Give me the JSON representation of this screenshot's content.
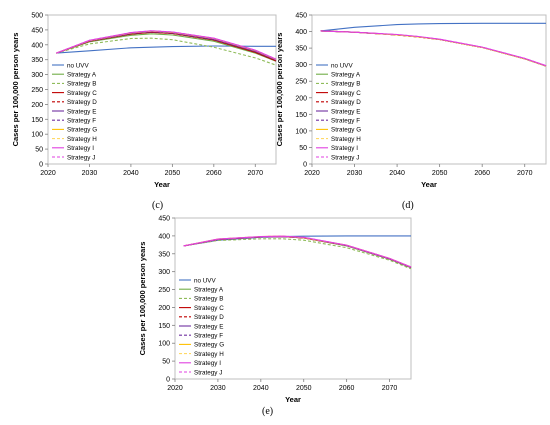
{
  "chart_data": [
    {
      "type": "line",
      "panel_label": "(c)",
      "xlabel": "Year",
      "ylabel": "Cases per 100,000 person years",
      "xlim": [
        2020,
        2075
      ],
      "ylim": [
        0,
        500
      ],
      "xticks": [
        "2020",
        "2030",
        "2040",
        "2050",
        "2060",
        "2070"
      ],
      "yticks": [
        "0",
        "50",
        "100",
        "150",
        "200",
        "250",
        "300",
        "350",
        "400",
        "450",
        "500"
      ],
      "x": [
        2022,
        2030,
        2040,
        2045,
        2050,
        2060,
        2070,
        2075
      ],
      "series": [
        {
          "name": "no UVV",
          "color": "#4472C4",
          "dash": false,
          "values": [
            372,
            380,
            390,
            392,
            394,
            396,
            395,
            395
          ]
        },
        {
          "name": "Strategy A",
          "color": "#70AD47",
          "dash": false,
          "values": [
            372,
            410,
            432,
            437,
            433,
            412,
            372,
            345
          ]
        },
        {
          "name": "Strategy B",
          "color": "#8FBC5A",
          "dash": true,
          "values": [
            372,
            403,
            421,
            422,
            417,
            392,
            356,
            332
          ]
        },
        {
          "name": "Strategy C",
          "color": "#C00000",
          "dash": false,
          "values": [
            372,
            412,
            436,
            442,
            438,
            416,
            375,
            346
          ]
        },
        {
          "name": "Strategy D",
          "color": "#C00000",
          "dash": true,
          "values": [
            372,
            412,
            436,
            442,
            438,
            416,
            375,
            346
          ]
        },
        {
          "name": "Strategy E",
          "color": "#7030A0",
          "dash": false,
          "values": [
            372,
            413,
            438,
            444,
            440,
            418,
            378,
            349
          ]
        },
        {
          "name": "Strategy F",
          "color": "#7030A0",
          "dash": true,
          "values": [
            372,
            413,
            438,
            444,
            440,
            418,
            378,
            349
          ]
        },
        {
          "name": "Strategy G",
          "color": "#FFC000",
          "dash": false,
          "values": [
            372,
            414,
            440,
            446,
            442,
            421,
            381,
            351
          ]
        },
        {
          "name": "Strategy H",
          "color": "#FFD966",
          "dash": true,
          "values": [
            372,
            414,
            440,
            446,
            442,
            421,
            381,
            351
          ]
        },
        {
          "name": "Strategy I",
          "color": "#E040E0",
          "dash": false,
          "values": [
            372,
            415,
            441,
            447,
            443,
            422,
            382,
            352
          ]
        },
        {
          "name": "Strategy J",
          "color": "#E040E0",
          "dash": true,
          "values": [
            372,
            415,
            441,
            447,
            443,
            422,
            382,
            352
          ]
        }
      ]
    },
    {
      "type": "line",
      "panel_label": "(d)",
      "xlabel": "Year",
      "ylabel": "Cases per 100,000 person years",
      "xlim": [
        2020,
        2075
      ],
      "ylim": [
        0,
        450
      ],
      "xticks": [
        "2020",
        "2030",
        "2040",
        "2050",
        "2060",
        "2070"
      ],
      "yticks": [
        "0",
        "50",
        "100",
        "150",
        "200",
        "250",
        "300",
        "350",
        "400",
        "450"
      ],
      "x": [
        2022,
        2030,
        2040,
        2045,
        2050,
        2060,
        2070,
        2075
      ],
      "series": [
        {
          "name": "no UVV",
          "color": "#4472C4",
          "dash": false,
          "values": [
            402,
            413,
            421,
            423,
            424,
            425,
            425,
            425
          ]
        },
        {
          "name": "Strategy A",
          "color": "#70AD47",
          "dash": false,
          "values": [
            402,
            398,
            390,
            384,
            376,
            352,
            318,
            296
          ]
        },
        {
          "name": "Strategy B",
          "color": "#8FBC5A",
          "dash": true,
          "values": [
            402,
            398,
            390,
            384,
            376,
            352,
            317,
            295
          ]
        },
        {
          "name": "Strategy C",
          "color": "#C00000",
          "dash": false,
          "values": [
            402,
            398,
            390,
            384,
            376,
            352,
            318,
            296
          ]
        },
        {
          "name": "Strategy D",
          "color": "#C00000",
          "dash": true,
          "values": [
            402,
            398,
            390,
            384,
            376,
            352,
            318,
            296
          ]
        },
        {
          "name": "Strategy E",
          "color": "#7030A0",
          "dash": false,
          "values": [
            402,
            398,
            390,
            384,
            376,
            352,
            318,
            296
          ]
        },
        {
          "name": "Strategy F",
          "color": "#7030A0",
          "dash": true,
          "values": [
            402,
            398,
            390,
            384,
            376,
            352,
            318,
            296
          ]
        },
        {
          "name": "Strategy G",
          "color": "#FFC000",
          "dash": false,
          "values": [
            402,
            398,
            390,
            384,
            376,
            352,
            318,
            296
          ]
        },
        {
          "name": "Strategy H",
          "color": "#FFD966",
          "dash": true,
          "values": [
            402,
            398,
            390,
            384,
            376,
            352,
            318,
            296
          ]
        },
        {
          "name": "Strategy I",
          "color": "#E040E0",
          "dash": false,
          "values": [
            402,
            398,
            391,
            385,
            377,
            353,
            319,
            297
          ]
        },
        {
          "name": "Strategy J",
          "color": "#E040E0",
          "dash": true,
          "values": [
            402,
            398,
            391,
            385,
            377,
            353,
            319,
            297
          ]
        }
      ]
    },
    {
      "type": "line",
      "panel_label": "(e)",
      "xlabel": "Year",
      "ylabel": "Cases per 100,000 person years",
      "xlim": [
        2020,
        2075
      ],
      "ylim": [
        0,
        450
      ],
      "xticks": [
        "2020",
        "2030",
        "2040",
        "2050",
        "2060",
        "2070"
      ],
      "yticks": [
        "0",
        "50",
        "100",
        "150",
        "200",
        "250",
        "300",
        "350",
        "400",
        "450"
      ],
      "x": [
        2022,
        2030,
        2040,
        2045,
        2050,
        2060,
        2070,
        2075
      ],
      "series": [
        {
          "name": "no UVV",
          "color": "#4472C4",
          "dash": false,
          "values": [
            372,
            388,
            396,
            398,
            399,
            400,
            400,
            400
          ]
        },
        {
          "name": "Strategy A",
          "color": "#70AD47",
          "dash": false,
          "values": [
            372,
            390,
            397,
            398,
            394,
            372,
            335,
            311
          ]
        },
        {
          "name": "Strategy B",
          "color": "#8FBC5A",
          "dash": true,
          "values": [
            372,
            387,
            392,
            392,
            388,
            367,
            332,
            308
          ]
        },
        {
          "name": "Strategy C",
          "color": "#C00000",
          "dash": false,
          "values": [
            372,
            390,
            397,
            398,
            394,
            373,
            336,
            312
          ]
        },
        {
          "name": "Strategy D",
          "color": "#C00000",
          "dash": true,
          "values": [
            372,
            390,
            397,
            398,
            394,
            373,
            336,
            312
          ]
        },
        {
          "name": "Strategy E",
          "color": "#7030A0",
          "dash": false,
          "values": [
            372,
            390,
            397,
            398,
            395,
            373,
            336,
            312
          ]
        },
        {
          "name": "Strategy F",
          "color": "#7030A0",
          "dash": true,
          "values": [
            372,
            390,
            397,
            398,
            395,
            373,
            336,
            312
          ]
        },
        {
          "name": "Strategy G",
          "color": "#FFC000",
          "dash": false,
          "values": [
            372,
            391,
            398,
            399,
            395,
            374,
            337,
            313
          ]
        },
        {
          "name": "Strategy H",
          "color": "#FFD966",
          "dash": true,
          "values": [
            372,
            391,
            398,
            399,
            395,
            374,
            337,
            313
          ]
        },
        {
          "name": "Strategy I",
          "color": "#E040E0",
          "dash": false,
          "values": [
            372,
            391,
            398,
            399,
            396,
            374,
            337,
            313
          ]
        },
        {
          "name": "Strategy J",
          "color": "#E040E0",
          "dash": true,
          "values": [
            372,
            391,
            398,
            399,
            396,
            374,
            337,
            313
          ]
        }
      ]
    }
  ]
}
